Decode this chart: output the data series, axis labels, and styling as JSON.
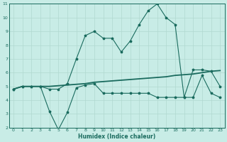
{
  "xlabel": "Humidex (Indice chaleur)",
  "xlim": [
    -0.5,
    23.5
  ],
  "ylim": [
    2,
    11
  ],
  "yticks": [
    2,
    3,
    4,
    5,
    6,
    7,
    8,
    9,
    10,
    11
  ],
  "xticks": [
    0,
    1,
    2,
    3,
    4,
    5,
    6,
    7,
    8,
    9,
    10,
    11,
    12,
    13,
    14,
    15,
    16,
    17,
    18,
    19,
    20,
    21,
    22,
    23
  ],
  "bg_color": "#c8ece6",
  "line_color": "#1a6b5e",
  "grid_color": "#b0d8d0",
  "line1_x": [
    0,
    1,
    2,
    3,
    4,
    5,
    6,
    7,
    8,
    9,
    10,
    11,
    12,
    13,
    14,
    15,
    16,
    17,
    18,
    19,
    20,
    21,
    22,
    23
  ],
  "line1_y": [
    4.8,
    5.0,
    5.0,
    5.0,
    4.8,
    4.8,
    5.2,
    7.0,
    8.7,
    9.0,
    8.5,
    8.5,
    7.5,
    8.3,
    9.5,
    10.5,
    11.0,
    10.0,
    9.5,
    4.2,
    6.2,
    6.2,
    6.1,
    5.0
  ],
  "line2_x": [
    0,
    1,
    2,
    3,
    4,
    5,
    6,
    7,
    8,
    9,
    10,
    11,
    12,
    13,
    14,
    15,
    16,
    17,
    18,
    19,
    20,
    21,
    22,
    23
  ],
  "line2_y": [
    4.8,
    5.0,
    5.0,
    5.0,
    3.2,
    1.85,
    3.1,
    4.9,
    5.1,
    5.2,
    4.5,
    4.5,
    4.5,
    4.5,
    4.5,
    4.5,
    4.2,
    4.2,
    4.2,
    4.2,
    4.2,
    5.8,
    4.5,
    4.2
  ],
  "line3_x": [
    0,
    1,
    2,
    3,
    4,
    5,
    6,
    7,
    8,
    9,
    10,
    11,
    12,
    13,
    14,
    15,
    16,
    17,
    18,
    19,
    20,
    21,
    22,
    23
  ],
  "line3_y": [
    4.8,
    5.0,
    5.0,
    5.0,
    5.0,
    5.05,
    5.1,
    5.15,
    5.2,
    5.3,
    5.35,
    5.4,
    5.45,
    5.5,
    5.55,
    5.6,
    5.65,
    5.7,
    5.8,
    5.85,
    5.9,
    6.0,
    6.1,
    6.15
  ]
}
